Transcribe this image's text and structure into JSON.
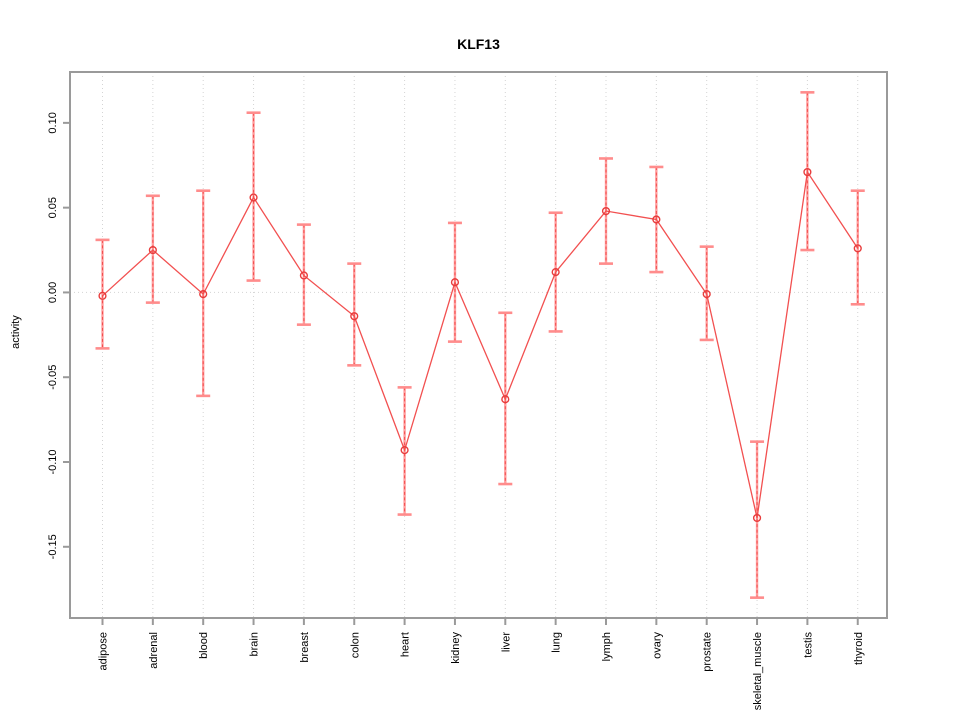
{
  "window": {
    "background": "#ffffff"
  },
  "chart_data": {
    "type": "line",
    "title": "KLF13",
    "xlabel": "",
    "ylabel": "activity",
    "legend_position": "none",
    "grid": "vertical dotted gridline at each category; horizontal dotted line at y=0",
    "error_bars": true,
    "point_style": "open-circle",
    "categories": [
      "adipose",
      "adrenal",
      "blood",
      "brain",
      "breast",
      "colon",
      "heart",
      "kidney",
      "liver",
      "lung",
      "lymph",
      "ovary",
      "prostate",
      "skeletal_muscle",
      "testis",
      "thyroid"
    ],
    "series": [
      {
        "name": "KLF13",
        "values": [
          -0.002,
          0.025,
          -0.001,
          0.056,
          0.01,
          -0.014,
          -0.093,
          0.006,
          -0.063,
          0.012,
          0.048,
          0.043,
          -0.001,
          -0.133,
          0.071,
          0.026
        ],
        "upper": [
          0.031,
          0.057,
          0.06,
          0.106,
          0.04,
          0.017,
          -0.056,
          0.041,
          -0.012,
          0.047,
          0.079,
          0.074,
          0.027,
          -0.088,
          0.118,
          0.06
        ],
        "lower": [
          -0.033,
          -0.006,
          -0.061,
          0.007,
          -0.019,
          -0.043,
          -0.131,
          -0.029,
          -0.113,
          -0.023,
          0.017,
          0.012,
          -0.028,
          -0.18,
          0.025,
          -0.007
        ]
      }
    ],
    "ylim": [
      -0.192,
      0.13
    ],
    "yticks": [
      0.1,
      0.05,
      0.0,
      -0.05,
      -0.1,
      -0.15
    ],
    "ytick_labels": [
      "0.10",
      "0.05",
      "0.00",
      "-0.05",
      "-0.10",
      "-0.15"
    ],
    "colors": {
      "line": "#f25050",
      "point": "#e83c3c",
      "error_bar": "#ff9e9e",
      "error_cap": "#ff8c8c",
      "error_dash": "#f04040",
      "grid": "#d4d4d4",
      "box": "#9a9a9a",
      "text": "#000000"
    }
  }
}
